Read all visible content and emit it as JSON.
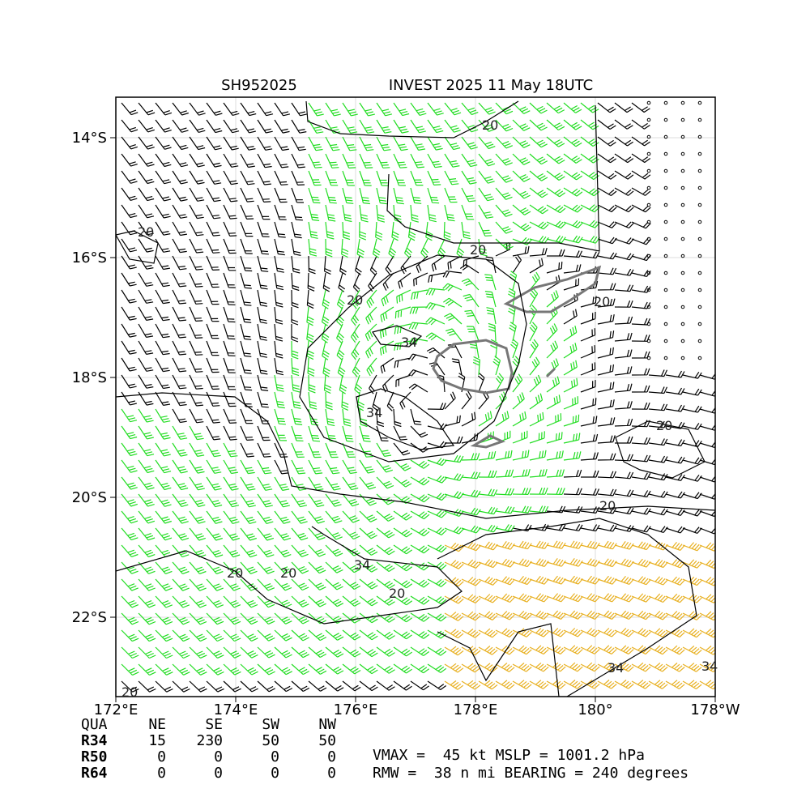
{
  "title": {
    "storm_id": "SH952025",
    "name": "INVEST 2025 11 May 18UTC"
  },
  "map": {
    "lat_labels": [
      "14°S",
      "16°S",
      "18°S",
      "20°S",
      "22°S"
    ],
    "lon_labels": [
      "172°E",
      "174°E",
      "176°E",
      "178°E",
      "180°",
      "178°W"
    ],
    "contour_labels": [
      20,
      20,
      20,
      20,
      20,
      20,
      20,
      20,
      20,
      20,
      20,
      34,
      34,
      34,
      34,
      34
    ]
  },
  "table": {
    "header": [
      "QUA",
      "NE",
      "SE",
      "SW",
      "NW"
    ],
    "rows": [
      [
        "R34",
        15,
        230,
        50,
        50
      ],
      [
        "R50",
        0,
        0,
        0,
        0
      ],
      [
        "R64",
        0,
        0,
        0,
        0
      ]
    ]
  },
  "summary": [
    "VMAX =  45 kt MSLP = 1001.2 hPa",
    "RMW =  38 n mi BEARING = 240 degrees"
  ]
}
